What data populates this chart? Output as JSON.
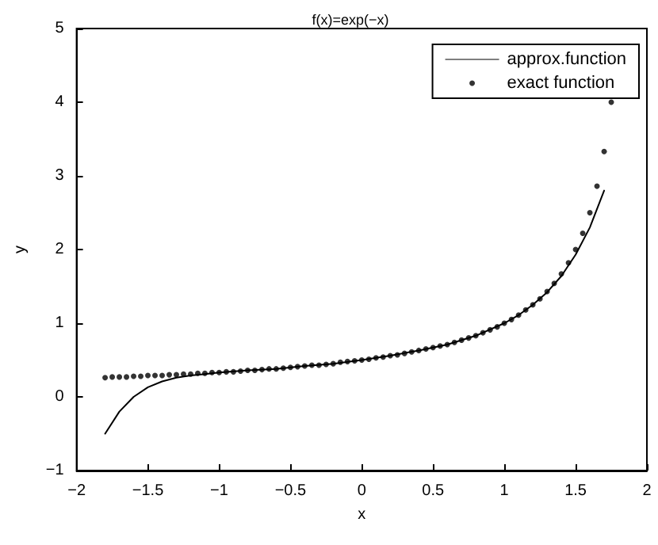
{
  "chart_data": {
    "type": "line",
    "title": "f(x)=exp(−x)",
    "xlabel": "x",
    "ylabel": "y",
    "xlim": [
      -2,
      2
    ],
    "xticks": [
      -2,
      -1.5,
      -1,
      -0.5,
      0,
      0.5,
      1,
      1.5,
      2
    ],
    "ylim": [
      -1,
      5
    ],
    "yticks": [
      -1,
      0,
      1,
      2,
      3,
      4,
      5
    ],
    "grid": false,
    "legend": "top right",
    "series": [
      {
        "name": "approx.function",
        "color": "#000000",
        "x": [
          -1.8,
          -1.7,
          -1.6,
          -1.5,
          -1.4,
          -1.3,
          -1.2,
          -1.1,
          -1.0,
          -0.8,
          -0.6,
          -0.4,
          -0.2,
          0,
          0.2,
          0.4,
          0.6,
          0.8,
          1.0,
          1.1,
          1.2,
          1.3,
          1.4,
          1.5,
          1.6,
          1.7
        ],
        "values": [
          -0.5,
          -0.2,
          0.0,
          0.13,
          0.21,
          0.26,
          0.29,
          0.31,
          0.33,
          0.36,
          0.38,
          0.42,
          0.45,
          0.5,
          0.56,
          0.63,
          0.71,
          0.83,
          1.0,
          1.11,
          1.25,
          1.42,
          1.64,
          1.93,
          2.3,
          2.8
        ]
      },
      {
        "name": "exact function",
        "type": "scatter",
        "color": "#000000",
        "x": [
          -1.8,
          -1.75,
          -1.7,
          -1.65,
          -1.6,
          -1.55,
          -1.5,
          -1.45,
          -1.4,
          -1.35,
          -1.3,
          -1.25,
          -1.2,
          -1.15,
          -1.1,
          -1.05,
          -1.0,
          -0.95,
          -0.9,
          -0.85,
          -0.8,
          -0.75,
          -0.7,
          -0.65,
          -0.6,
          -0.55,
          -0.5,
          -0.45,
          -0.4,
          -0.35,
          -0.3,
          -0.25,
          -0.2,
          -0.15,
          -0.1,
          -0.05,
          0,
          0.05,
          0.1,
          0.15,
          0.2,
          0.25,
          0.3,
          0.35,
          0.4,
          0.45,
          0.5,
          0.55,
          0.6,
          0.65,
          0.7,
          0.75,
          0.8,
          0.85,
          0.9,
          0.95,
          1.0,
          1.05,
          1.1,
          1.15,
          1.2,
          1.25,
          1.3,
          1.35,
          1.4,
          1.45,
          1.5,
          1.55,
          1.6,
          1.65,
          1.7,
          1.75
        ],
        "values": [
          0.26,
          0.27,
          0.27,
          0.27,
          0.28,
          0.28,
          0.29,
          0.29,
          0.29,
          0.3,
          0.3,
          0.31,
          0.31,
          0.32,
          0.32,
          0.33,
          0.33,
          0.34,
          0.34,
          0.35,
          0.36,
          0.36,
          0.37,
          0.38,
          0.38,
          0.39,
          0.4,
          0.41,
          0.42,
          0.43,
          0.43,
          0.44,
          0.45,
          0.47,
          0.48,
          0.49,
          0.5,
          0.51,
          0.53,
          0.54,
          0.56,
          0.57,
          0.59,
          0.61,
          0.63,
          0.65,
          0.67,
          0.69,
          0.71,
          0.74,
          0.77,
          0.8,
          0.83,
          0.87,
          0.91,
          0.95,
          1.0,
          1.05,
          1.11,
          1.18,
          1.25,
          1.33,
          1.43,
          1.54,
          1.67,
          1.82,
          2.0,
          2.22,
          2.5,
          2.86,
          3.33,
          4.0
        ]
      }
    ]
  }
}
